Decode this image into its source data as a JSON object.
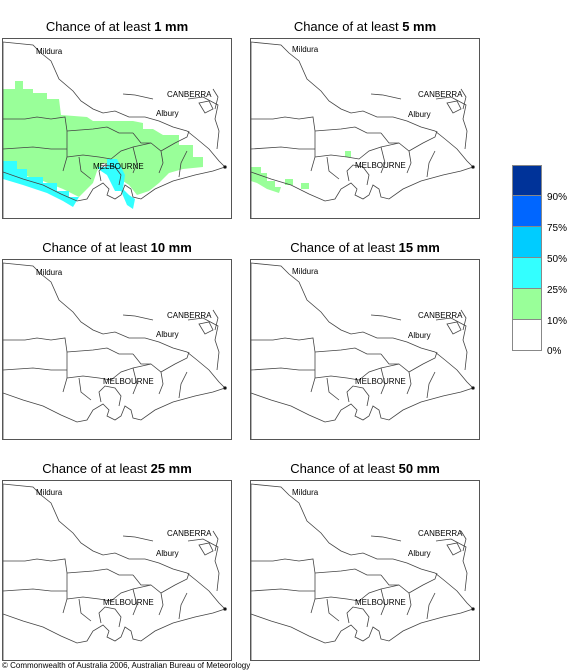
{
  "panels": [
    {
      "prefix": "Chance of at least ",
      "amount": "1 mm"
    },
    {
      "prefix": "Chance of at least ",
      "amount": "5 mm"
    },
    {
      "prefix": "Chance of at least ",
      "amount": "10 mm"
    },
    {
      "prefix": "Chance of at least ",
      "amount": "15 mm"
    },
    {
      "prefix": "Chance of at least ",
      "amount": "25 mm"
    },
    {
      "prefix": "Chance of at least ",
      "amount": "50 mm"
    }
  ],
  "cities": {
    "mildura": "Mildura",
    "canberra": "CANBERRA",
    "albury": "Albury",
    "melbourne": "MELBOURNE"
  },
  "legend": {
    "labels": [
      "90%",
      "75%",
      "50%",
      "25%",
      "10%",
      "0%"
    ],
    "colors": [
      "#003399",
      "#0066ff",
      "#00ccff",
      "#33ffff",
      "#99ff99",
      "#ffffff"
    ]
  },
  "copyright": "© Commonwealth of Australia 2006, Australian Bureau of Meteorology"
}
